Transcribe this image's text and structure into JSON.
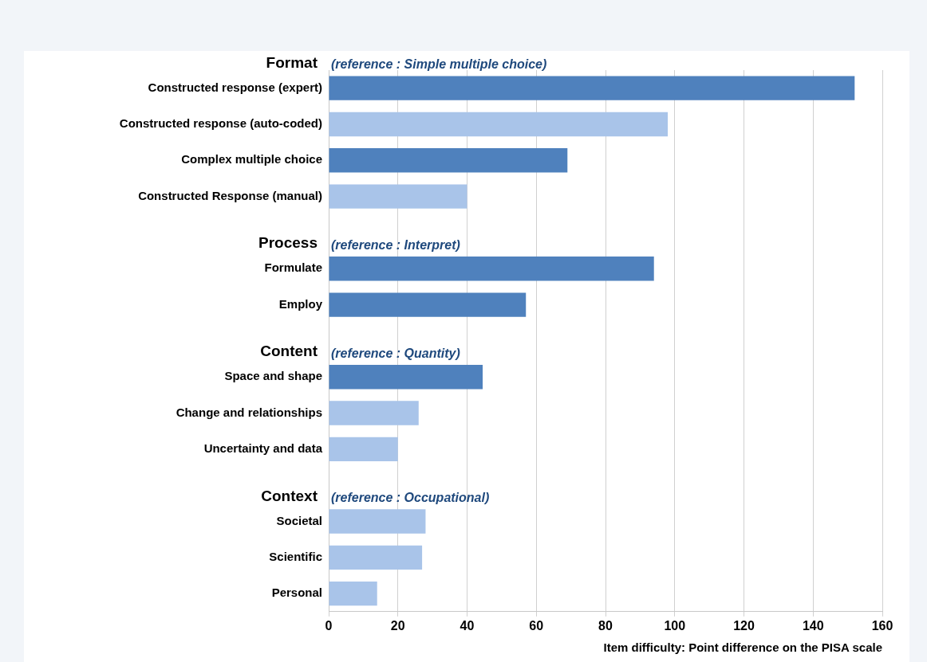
{
  "chart_data": {
    "type": "bar",
    "orientation": "horizontal",
    "xlabel": "Item difficulty: Point difference on the PISA scale",
    "categories": [
      "Constructed response (expert)",
      "Constructed response (auto-coded)",
      "Complex multiple choice",
      "Constructed Response (manual)",
      null,
      "Formulate",
      "Employ",
      null,
      "Space and shape",
      "Change and relationships",
      "Uncertainty and data",
      null,
      "Societal",
      "Scientific",
      "Personal"
    ],
    "values": [
      152,
      98,
      69,
      40,
      null,
      94,
      57,
      null,
      44.5,
      26,
      20,
      null,
      28,
      27,
      14
    ],
    "colors": [
      "#4f81bd",
      "#a9c4e9",
      "#4f81bd",
      "#a9c4e9",
      "#a9c4e9",
      "#4f81bd",
      "#4f81bd",
      "#a9c4e9",
      "#4f81bd",
      "#a9c4e9",
      "#a9c4e9",
      "#a9c4e9",
      "#a9c4e9",
      "#a9c4e9",
      "#a9c4e9"
    ],
    "xlim": [
      0,
      160
    ],
    "xticks": [
      0,
      20,
      40,
      60,
      80,
      100,
      120,
      140,
      160
    ],
    "grid": "x",
    "annotations": [
      "Format",
      "(reference : Simple multiple choice)",
      "Process",
      "(reference : Interpret)",
      "Content",
      "(reference : Quantity)",
      "Context",
      "(reference : Occupational)"
    ]
  }
}
